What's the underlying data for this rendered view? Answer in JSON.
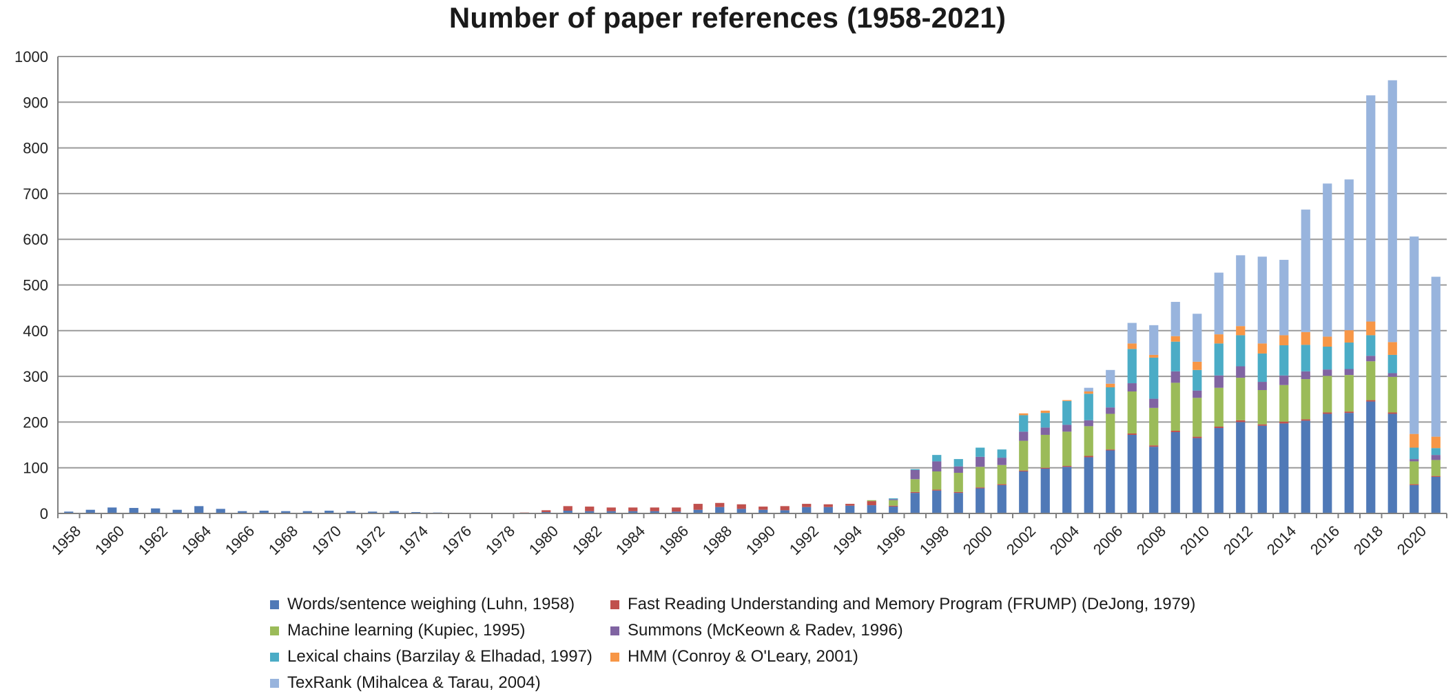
{
  "chart_data": {
    "type": "bar",
    "stacked": true,
    "title": "Number of paper references (1958-2021)",
    "xlabel": "",
    "ylabel": "",
    "ylim": [
      0,
      1000
    ],
    "yticks": [
      0,
      100,
      200,
      300,
      400,
      500,
      600,
      700,
      800,
      900,
      1000
    ],
    "grid": true,
    "legend_position": "bottom",
    "categories": [
      1958,
      1959,
      1960,
      1961,
      1962,
      1963,
      1964,
      1965,
      1966,
      1967,
      1968,
      1969,
      1970,
      1971,
      1972,
      1973,
      1974,
      1975,
      1976,
      1977,
      1978,
      1979,
      1980,
      1981,
      1982,
      1983,
      1984,
      1985,
      1986,
      1987,
      1988,
      1989,
      1990,
      1991,
      1992,
      1993,
      1994,
      1995,
      1996,
      1997,
      1998,
      1999,
      2000,
      2001,
      2002,
      2003,
      2004,
      2005,
      2006,
      2007,
      2008,
      2009,
      2010,
      2011,
      2012,
      2013,
      2014,
      2015,
      2016,
      2017,
      2018,
      2019,
      2020,
      2021
    ],
    "tick_labels": [
      "1958",
      "1960",
      "1962",
      "1964",
      "1966",
      "1968",
      "1970",
      "1972",
      "1974",
      "1976",
      "1978",
      "1980",
      "1982",
      "1984",
      "1986",
      "1988",
      "1990",
      "1992",
      "1994",
      "1996",
      "1998",
      "2000",
      "2002",
      "2004",
      "2006",
      "2008",
      "2010",
      "2012",
      "2014",
      "2016",
      "2018",
      "2020"
    ],
    "series": [
      {
        "name": "Words/sentence weighing (Luhn, 1958)",
        "color": "#4f79b7",
        "values": [
          4,
          8,
          13,
          12,
          11,
          8,
          16,
          10,
          5,
          6,
          5,
          5,
          6,
          5,
          4,
          5,
          3,
          2,
          0,
          0,
          1,
          1,
          3,
          6,
          5,
          5,
          5,
          5,
          4,
          8,
          14,
          10,
          8,
          7,
          14,
          14,
          17,
          18,
          15,
          45,
          50,
          45,
          55,
          62,
          92,
          98,
          102,
          123,
          138,
          172,
          146,
          178,
          165,
          187,
          200,
          192,
          197,
          203,
          218,
          220,
          245,
          218,
          62,
          80
        ]
      },
      {
        "name": "Fast Reading Understanding and Memory Program (FRUMP) (DeJong, 1979)",
        "color": "#c0504d",
        "values": [
          0,
          0,
          0,
          0,
          0,
          0,
          0,
          0,
          0,
          0,
          0,
          0,
          0,
          0,
          0,
          0,
          0,
          0,
          0,
          0,
          0,
          1,
          4,
          10,
          10,
          8,
          8,
          8,
          9,
          13,
          9,
          10,
          7,
          9,
          7,
          6,
          4,
          9,
          2,
          2,
          2,
          2,
          2,
          2,
          2,
          2,
          2,
          3,
          2,
          3,
          3,
          3,
          3,
          3,
          4,
          3,
          4,
          3,
          3,
          3,
          3,
          3,
          2,
          2
        ]
      },
      {
        "name": "Machine learning (Kupiec, 1995)",
        "color": "#9bbb59",
        "values": [
          0,
          0,
          0,
          0,
          0,
          0,
          0,
          0,
          0,
          0,
          0,
          0,
          0,
          0,
          0,
          0,
          0,
          0,
          0,
          0,
          0,
          0,
          0,
          0,
          0,
          0,
          0,
          0,
          0,
          0,
          0,
          0,
          0,
          0,
          0,
          0,
          0,
          2,
          12,
          28,
          40,
          42,
          45,
          42,
          65,
          72,
          75,
          65,
          78,
          92,
          82,
          105,
          85,
          85,
          93,
          75,
          80,
          88,
          80,
          80,
          85,
          78,
          50,
          35
        ]
      },
      {
        "name": "Summons (McKeown & Radev, 1996)",
        "color": "#8064a2",
        "values": [
          0,
          0,
          0,
          0,
          0,
          0,
          0,
          0,
          0,
          0,
          0,
          0,
          0,
          0,
          0,
          0,
          0,
          0,
          0,
          0,
          0,
          0,
          0,
          0,
          0,
          0,
          0,
          0,
          0,
          0,
          0,
          0,
          0,
          0,
          0,
          0,
          0,
          0,
          2,
          20,
          22,
          14,
          22,
          16,
          20,
          16,
          15,
          13,
          14,
          18,
          20,
          25,
          16,
          27,
          25,
          18,
          21,
          17,
          14,
          13,
          12,
          8,
          5,
          11
        ]
      },
      {
        "name": "Lexical chains (Barzilay & Elhadad, 1997)",
        "color": "#4bacc6",
        "values": [
          0,
          0,
          0,
          0,
          0,
          0,
          0,
          0,
          0,
          0,
          0,
          0,
          0,
          0,
          0,
          0,
          0,
          0,
          0,
          0,
          0,
          0,
          0,
          0,
          0,
          0,
          0,
          0,
          0,
          0,
          0,
          0,
          0,
          0,
          0,
          0,
          0,
          0,
          2,
          2,
          14,
          16,
          20,
          18,
          36,
          32,
          52,
          58,
          44,
          75,
          90,
          65,
          45,
          70,
          68,
          62,
          66,
          58,
          50,
          58,
          45,
          40,
          25,
          15
        ]
      },
      {
        "name": "HMM (Conroy & O'Leary, 2001)",
        "color": "#f79646",
        "values": [
          0,
          0,
          0,
          0,
          0,
          0,
          0,
          0,
          0,
          0,
          0,
          0,
          0,
          0,
          0,
          0,
          0,
          0,
          0,
          0,
          0,
          0,
          0,
          0,
          0,
          0,
          0,
          0,
          0,
          0,
          0,
          0,
          0,
          0,
          0,
          0,
          0,
          0,
          0,
          0,
          0,
          0,
          0,
          0,
          4,
          5,
          2,
          5,
          8,
          12,
          6,
          12,
          18,
          20,
          20,
          22,
          22,
          28,
          22,
          27,
          30,
          28,
          30,
          25
        ]
      },
      {
        "name": "TexRank (Mihalcea & Tarau, 2004)",
        "color": "#98b4dd",
        "values": [
          0,
          0,
          0,
          0,
          0,
          0,
          0,
          0,
          0,
          0,
          0,
          0,
          0,
          0,
          0,
          0,
          0,
          0,
          0,
          0,
          0,
          0,
          0,
          0,
          0,
          0,
          0,
          0,
          0,
          0,
          0,
          0,
          0,
          0,
          0,
          0,
          0,
          0,
          0,
          0,
          0,
          0,
          0,
          0,
          0,
          0,
          0,
          8,
          30,
          45,
          65,
          75,
          105,
          135,
          155,
          190,
          165,
          268,
          335,
          330,
          495,
          573,
          432,
          350
        ]
      }
    ]
  }
}
